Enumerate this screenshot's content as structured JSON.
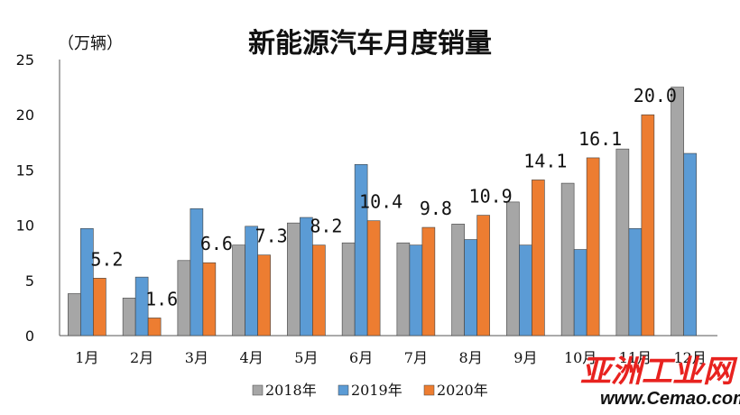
{
  "chart_data": {
    "type": "bar",
    "title": "新能源汽车月度销量",
    "unit_label": "（万辆）",
    "categories": [
      "1月",
      "2月",
      "3月",
      "4月",
      "5月",
      "6月",
      "7月",
      "8月",
      "9月",
      "10月",
      "11月",
      "12月"
    ],
    "series": [
      {
        "name": "2018年",
        "color": "#a6a6a6",
        "values": [
          3.8,
          3.4,
          6.8,
          8.2,
          10.2,
          8.4,
          8.4,
          10.1,
          12.1,
          13.8,
          16.9,
          22.5
        ]
      },
      {
        "name": "2019年",
        "color": "#5b9bd5",
        "values": [
          9.7,
          5.3,
          11.5,
          9.9,
          10.7,
          15.5,
          8.2,
          8.7,
          8.2,
          7.8,
          9.7,
          16.5
        ]
      },
      {
        "name": "2020年",
        "color": "#ed7d31",
        "values": [
          5.2,
          1.6,
          6.6,
          7.3,
          8.2,
          10.4,
          9.8,
          10.9,
          14.1,
          16.1,
          20.0,
          null
        ]
      }
    ],
    "data_labels": [
      "5.2",
      "1.6",
      "6.6",
      "7.3",
      "8.2",
      "10.4",
      "9.8",
      "10.9",
      "14.1",
      "16.1",
      "20.0"
    ],
    "yticks": [
      "0",
      "5",
      "10",
      "15",
      "20",
      "25"
    ],
    "ylim": [
      0,
      25
    ],
    "grid": false,
    "legend_position": "bottom"
  },
  "watermark": {
    "brand": "亚洲工业网",
    "url": "www.Cemao.com"
  }
}
